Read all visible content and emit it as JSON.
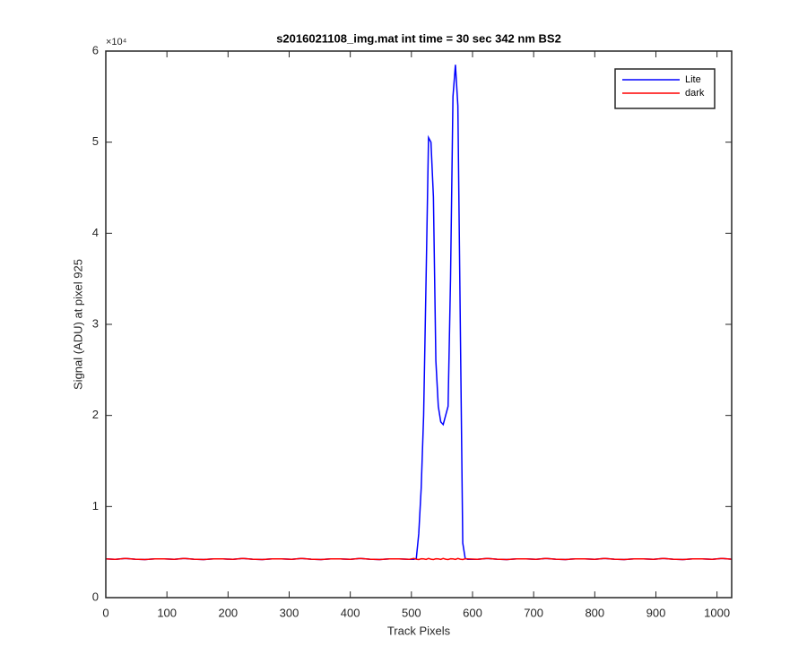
{
  "chart_data": {
    "type": "line",
    "title": "s2016021108_img.mat int time = 30 sec  342 nm BS2",
    "x_label": "Track Pixels",
    "y_label": "Signal (ADU) at pixel 925",
    "y_exponent_label": "×10⁴",
    "x": [
      0,
      16,
      32,
      48,
      64,
      80,
      96,
      112,
      128,
      144,
      160,
      176,
      192,
      208,
      224,
      240,
      256,
      272,
      288,
      304,
      320,
      336,
      352,
      368,
      384,
      400,
      416,
      432,
      448,
      464,
      480,
      496,
      504,
      508,
      512,
      516,
      520,
      524,
      528,
      532,
      536,
      540,
      544,
      548,
      552,
      556,
      560,
      564,
      568,
      572,
      576,
      580,
      584,
      588,
      592,
      608,
      624,
      640,
      656,
      672,
      688,
      704,
      720,
      736,
      752,
      768,
      784,
      800,
      816,
      832,
      848,
      864,
      880,
      896,
      912,
      928,
      944,
      960,
      976,
      992,
      1008,
      1024
    ],
    "series": [
      {
        "name": "Lite",
        "color": "#0000ff",
        "values": [
          4250,
          4200,
          4300,
          4220,
          4180,
          4260,
          4250,
          4200,
          4300,
          4220,
          4180,
          4260,
          4250,
          4200,
          4300,
          4220,
          4180,
          4260,
          4250,
          4200,
          4300,
          4220,
          4180,
          4260,
          4250,
          4200,
          4300,
          4220,
          4180,
          4260,
          4250,
          4200,
          4200,
          4300,
          7000,
          12000,
          20000,
          35000,
          50500,
          50000,
          44000,
          26000,
          21000,
          19300,
          19000,
          20000,
          21000,
          35000,
          55000,
          58500,
          54000,
          30000,
          6000,
          4300,
          4200,
          4200,
          4300,
          4220,
          4180,
          4260,
          4250,
          4200,
          4300,
          4220,
          4180,
          4260,
          4250,
          4200,
          4300,
          4220,
          4180,
          4260,
          4250,
          4200,
          4300,
          4220,
          4180,
          4260,
          4250,
          4200,
          4300,
          4220
        ]
      },
      {
        "name": "dark",
        "color": "#ff0000",
        "values": [
          4250,
          4200,
          4300,
          4220,
          4180,
          4260,
          4250,
          4200,
          4300,
          4220,
          4180,
          4260,
          4250,
          4200,
          4300,
          4220,
          4180,
          4260,
          4250,
          4200,
          4300,
          4220,
          4180,
          4260,
          4250,
          4200,
          4300,
          4220,
          4180,
          4260,
          4250,
          4200,
          4300,
          4220,
          4180,
          4260,
          4250,
          4200,
          4300,
          4220,
          4180,
          4260,
          4250,
          4200,
          4300,
          4220,
          4180,
          4260,
          4250,
          4200,
          4300,
          4220,
          4180,
          4260,
          4250,
          4200,
          4300,
          4220,
          4180,
          4260,
          4250,
          4200,
          4300,
          4220,
          4180,
          4260,
          4250,
          4200,
          4300,
          4220,
          4180,
          4260,
          4250,
          4200,
          4300,
          4220,
          4180,
          4260,
          4250,
          4200,
          4300,
          4220
        ]
      }
    ],
    "xlim": [
      0,
      1024
    ],
    "xticks": [
      0,
      100,
      200,
      300,
      400,
      500,
      600,
      700,
      800,
      900,
      1000
    ],
    "ylim": [
      0,
      60000
    ],
    "yticks": [
      0,
      {
        "value": 10000,
        "label": "1"
      },
      {
        "value": 20000,
        "label": "2"
      },
      {
        "value": 30000,
        "label": "3"
      },
      {
        "value": 40000,
        "label": "4"
      },
      {
        "value": 50000,
        "label": "5"
      },
      {
        "value": 60000,
        "label": "6"
      }
    ],
    "legend": "northeast",
    "grid": false
  }
}
